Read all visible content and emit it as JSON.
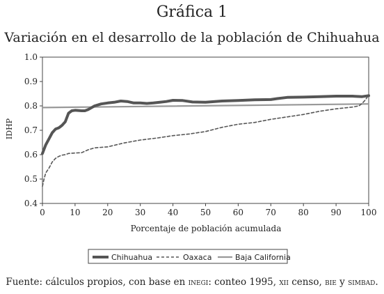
{
  "header": {
    "figure_label": "Gráfica 1",
    "title": "Variación en el desarrollo de la población de Chihuahua"
  },
  "source": {
    "prefix": "Fuente: cálculos propios, con base en",
    "inegi": "inegi",
    "part2": ": conteo 1995,",
    "xii": "xii",
    "part3": "censo,",
    "bie": "bie",
    "part4": "y",
    "simbad": "simbad",
    "part5": "."
  },
  "chart_data": {
    "type": "line",
    "xlabel": "Porcentaje de población acumulada",
    "ylabel": "IDHP",
    "xlim": [
      0,
      100
    ],
    "ylim": [
      0.4,
      1.0
    ],
    "x_ticks": [
      0,
      10,
      20,
      30,
      40,
      50,
      60,
      70,
      80,
      90,
      100
    ],
    "y_ticks": [
      "0.4",
      "0.5",
      "0.6",
      "0.7",
      "0.8",
      "0.9",
      "1.0"
    ],
    "grid": false,
    "legend_position": "bottom",
    "series": [
      {
        "name": "Chihuahua",
        "style": "solid-thick",
        "color": "#555555",
        "x": [
          0,
          1,
          2,
          3,
          4,
          5,
          6,
          7,
          8,
          9,
          10,
          12,
          13,
          14,
          16,
          18,
          20,
          22,
          24,
          26,
          28,
          30,
          32,
          34,
          36,
          38,
          40,
          43,
          46,
          50,
          55,
          60,
          65,
          70,
          72,
          75,
          80,
          85,
          90,
          95,
          98,
          100
        ],
        "y": [
          0.605,
          0.64,
          0.665,
          0.69,
          0.705,
          0.71,
          0.72,
          0.735,
          0.77,
          0.78,
          0.782,
          0.78,
          0.78,
          0.785,
          0.8,
          0.808,
          0.812,
          0.815,
          0.82,
          0.818,
          0.812,
          0.812,
          0.81,
          0.812,
          0.815,
          0.818,
          0.823,
          0.822,
          0.816,
          0.815,
          0.82,
          0.822,
          0.825,
          0.826,
          0.83,
          0.835,
          0.836,
          0.838,
          0.84,
          0.84,
          0.838,
          0.842
        ]
      },
      {
        "name": "Oaxaca",
        "style": "dashed",
        "color": "#555555",
        "x": [
          0,
          0.5,
          1,
          2,
          3,
          4,
          5,
          6,
          7,
          8,
          10,
          12,
          14,
          16,
          18,
          20,
          25,
          30,
          35,
          40,
          45,
          50,
          55,
          60,
          65,
          70,
          75,
          80,
          85,
          90,
          95,
          97,
          98,
          99,
          100
        ],
        "y": [
          0.47,
          0.5,
          0.525,
          0.545,
          0.57,
          0.585,
          0.593,
          0.598,
          0.6,
          0.605,
          0.607,
          0.608,
          0.62,
          0.628,
          0.63,
          0.632,
          0.648,
          0.66,
          0.668,
          0.678,
          0.685,
          0.695,
          0.712,
          0.725,
          0.732,
          0.745,
          0.755,
          0.765,
          0.778,
          0.788,
          0.795,
          0.8,
          0.81,
          0.825,
          0.845
        ]
      },
      {
        "name": "Baja California",
        "style": "solid",
        "color": "#999999",
        "x": [
          0,
          100
        ],
        "y": [
          0.793,
          0.808
        ]
      }
    ]
  }
}
